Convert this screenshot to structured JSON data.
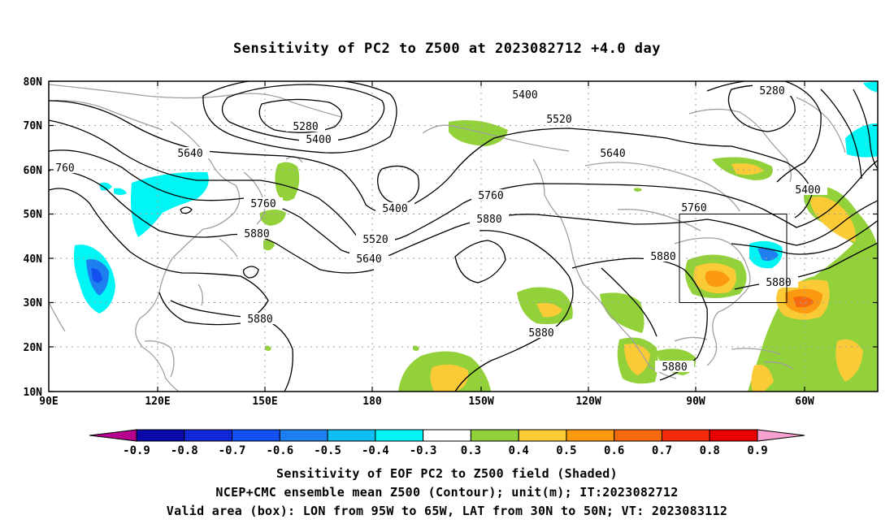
{
  "title": "Sensitivity of PC2 to Z500 at 2023082712 +4.0 day",
  "axes": {
    "lat_labels": [
      "80N",
      "70N",
      "60N",
      "50N",
      "40N",
      "30N",
      "20N",
      "10N"
    ],
    "lon_labels": [
      "90E",
      "120E",
      "150E",
      "180",
      "150W",
      "120W",
      "90W",
      "60W"
    ]
  },
  "contours": {
    "levels": [
      "5280",
      "5400",
      "5520",
      "5640",
      "5760",
      "5880"
    ],
    "labels": [
      {
        "text": "5280"
      },
      {
        "text": "5400"
      },
      {
        "text": "5400"
      },
      {
        "text": "5520"
      },
      {
        "text": "5640"
      },
      {
        "text": "760"
      },
      {
        "text": "5760"
      },
      {
        "text": "5880"
      },
      {
        "text": "5400"
      },
      {
        "text": "5520"
      },
      {
        "text": "5640"
      },
      {
        "text": "5760"
      },
      {
        "text": "5880"
      },
      {
        "text": "5880"
      },
      {
        "text": "5640"
      },
      {
        "text": "5880"
      },
      {
        "text": "5880"
      },
      {
        "text": "5760"
      },
      {
        "text": "5880"
      },
      {
        "text": "5880"
      },
      {
        "text": "5280"
      },
      {
        "text": "5400"
      }
    ]
  },
  "valid_box": {
    "lon_from": "95W",
    "lon_to": "65W",
    "lat_from": "30N",
    "lat_to": "50N"
  },
  "colorbar": {
    "labels": [
      "-0.9",
      "-0.8",
      "-0.7",
      "-0.6",
      "-0.5",
      "-0.4",
      "-0.3",
      "0.3",
      "0.4",
      "0.5",
      "0.6",
      "0.7",
      "0.8",
      "0.9"
    ],
    "colors": [
      "#b8008f",
      "#0a0aa8",
      "#1028d8",
      "#1450f0",
      "#1e80f0",
      "#10bdf0",
      "#00f5f5",
      "#ffffff",
      "#93d13a",
      "#fbcb37",
      "#fb9a10",
      "#f86a10",
      "#f02c08",
      "#e80000",
      "#f8a0d0"
    ]
  },
  "colors": {
    "green": "#93d13a",
    "yellow": "#fbcb37",
    "orange": "#fb9a10",
    "redorange": "#f86a10",
    "cyan": "#00f5f5",
    "skyblue": "#1e80f0",
    "coast": "#a0a0a0"
  },
  "captions": {
    "line1": "Sensitivity of EOF PC2 to Z500 field (Shaded)",
    "line2": "NCEP+CMC ensemble mean Z500 (Contour); unit(m); IT:2023082712",
    "line3": "Valid area (box): LON from 95W to 65W, LAT from 30N to 50N; VT: 2023083112"
  }
}
